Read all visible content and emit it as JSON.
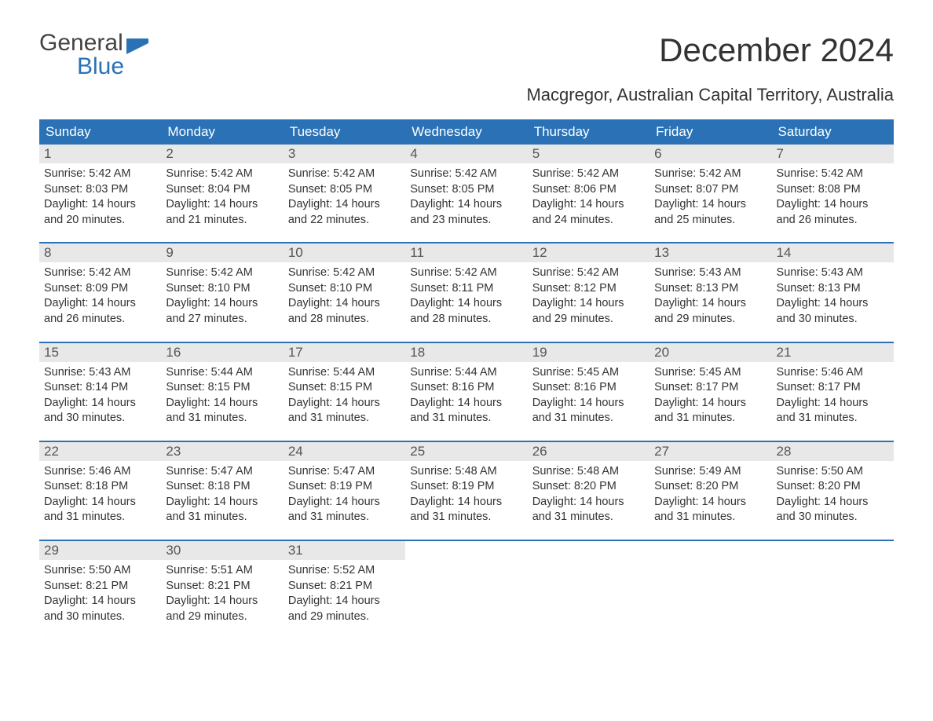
{
  "logo": {
    "word1": "General",
    "word2": "Blue",
    "accent_color": "#2a72b5",
    "text_color": "#444444"
  },
  "title": "December 2024",
  "subtitle": "Macgregor, Australian Capital Territory, Australia",
  "colors": {
    "header_bg": "#2a72b5",
    "header_text": "#ffffff",
    "daynum_bg": "#e8e8e8",
    "daynum_text": "#555555",
    "body_text": "#333333",
    "week_border": "#2a72b5",
    "page_bg": "#ffffff"
  },
  "day_labels": [
    "Sunday",
    "Monday",
    "Tuesday",
    "Wednesday",
    "Thursday",
    "Friday",
    "Saturday"
  ],
  "labels": {
    "sunrise": "Sunrise:",
    "sunset": "Sunset:",
    "daylight": "Daylight:"
  },
  "weeks": [
    [
      {
        "n": "1",
        "sunrise": "5:42 AM",
        "sunset": "8:03 PM",
        "daylight": "14 hours and 20 minutes."
      },
      {
        "n": "2",
        "sunrise": "5:42 AM",
        "sunset": "8:04 PM",
        "daylight": "14 hours and 21 minutes."
      },
      {
        "n": "3",
        "sunrise": "5:42 AM",
        "sunset": "8:05 PM",
        "daylight": "14 hours and 22 minutes."
      },
      {
        "n": "4",
        "sunrise": "5:42 AM",
        "sunset": "8:05 PM",
        "daylight": "14 hours and 23 minutes."
      },
      {
        "n": "5",
        "sunrise": "5:42 AM",
        "sunset": "8:06 PM",
        "daylight": "14 hours and 24 minutes."
      },
      {
        "n": "6",
        "sunrise": "5:42 AM",
        "sunset": "8:07 PM",
        "daylight": "14 hours and 25 minutes."
      },
      {
        "n": "7",
        "sunrise": "5:42 AM",
        "sunset": "8:08 PM",
        "daylight": "14 hours and 26 minutes."
      }
    ],
    [
      {
        "n": "8",
        "sunrise": "5:42 AM",
        "sunset": "8:09 PM",
        "daylight": "14 hours and 26 minutes."
      },
      {
        "n": "9",
        "sunrise": "5:42 AM",
        "sunset": "8:10 PM",
        "daylight": "14 hours and 27 minutes."
      },
      {
        "n": "10",
        "sunrise": "5:42 AM",
        "sunset": "8:10 PM",
        "daylight": "14 hours and 28 minutes."
      },
      {
        "n": "11",
        "sunrise": "5:42 AM",
        "sunset": "8:11 PM",
        "daylight": "14 hours and 28 minutes."
      },
      {
        "n": "12",
        "sunrise": "5:42 AM",
        "sunset": "8:12 PM",
        "daylight": "14 hours and 29 minutes."
      },
      {
        "n": "13",
        "sunrise": "5:43 AM",
        "sunset": "8:13 PM",
        "daylight": "14 hours and 29 minutes."
      },
      {
        "n": "14",
        "sunrise": "5:43 AM",
        "sunset": "8:13 PM",
        "daylight": "14 hours and 30 minutes."
      }
    ],
    [
      {
        "n": "15",
        "sunrise": "5:43 AM",
        "sunset": "8:14 PM",
        "daylight": "14 hours and 30 minutes."
      },
      {
        "n": "16",
        "sunrise": "5:44 AM",
        "sunset": "8:15 PM",
        "daylight": "14 hours and 31 minutes."
      },
      {
        "n": "17",
        "sunrise": "5:44 AM",
        "sunset": "8:15 PM",
        "daylight": "14 hours and 31 minutes."
      },
      {
        "n": "18",
        "sunrise": "5:44 AM",
        "sunset": "8:16 PM",
        "daylight": "14 hours and 31 minutes."
      },
      {
        "n": "19",
        "sunrise": "5:45 AM",
        "sunset": "8:16 PM",
        "daylight": "14 hours and 31 minutes."
      },
      {
        "n": "20",
        "sunrise": "5:45 AM",
        "sunset": "8:17 PM",
        "daylight": "14 hours and 31 minutes."
      },
      {
        "n": "21",
        "sunrise": "5:46 AM",
        "sunset": "8:17 PM",
        "daylight": "14 hours and 31 minutes."
      }
    ],
    [
      {
        "n": "22",
        "sunrise": "5:46 AM",
        "sunset": "8:18 PM",
        "daylight": "14 hours and 31 minutes."
      },
      {
        "n": "23",
        "sunrise": "5:47 AM",
        "sunset": "8:18 PM",
        "daylight": "14 hours and 31 minutes."
      },
      {
        "n": "24",
        "sunrise": "5:47 AM",
        "sunset": "8:19 PM",
        "daylight": "14 hours and 31 minutes."
      },
      {
        "n": "25",
        "sunrise": "5:48 AM",
        "sunset": "8:19 PM",
        "daylight": "14 hours and 31 minutes."
      },
      {
        "n": "26",
        "sunrise": "5:48 AM",
        "sunset": "8:20 PM",
        "daylight": "14 hours and 31 minutes."
      },
      {
        "n": "27",
        "sunrise": "5:49 AM",
        "sunset": "8:20 PM",
        "daylight": "14 hours and 31 minutes."
      },
      {
        "n": "28",
        "sunrise": "5:50 AM",
        "sunset": "8:20 PM",
        "daylight": "14 hours and 30 minutes."
      }
    ],
    [
      {
        "n": "29",
        "sunrise": "5:50 AM",
        "sunset": "8:21 PM",
        "daylight": "14 hours and 30 minutes."
      },
      {
        "n": "30",
        "sunrise": "5:51 AM",
        "sunset": "8:21 PM",
        "daylight": "14 hours and 29 minutes."
      },
      {
        "n": "31",
        "sunrise": "5:52 AM",
        "sunset": "8:21 PM",
        "daylight": "14 hours and 29 minutes."
      },
      null,
      null,
      null,
      null
    ]
  ]
}
